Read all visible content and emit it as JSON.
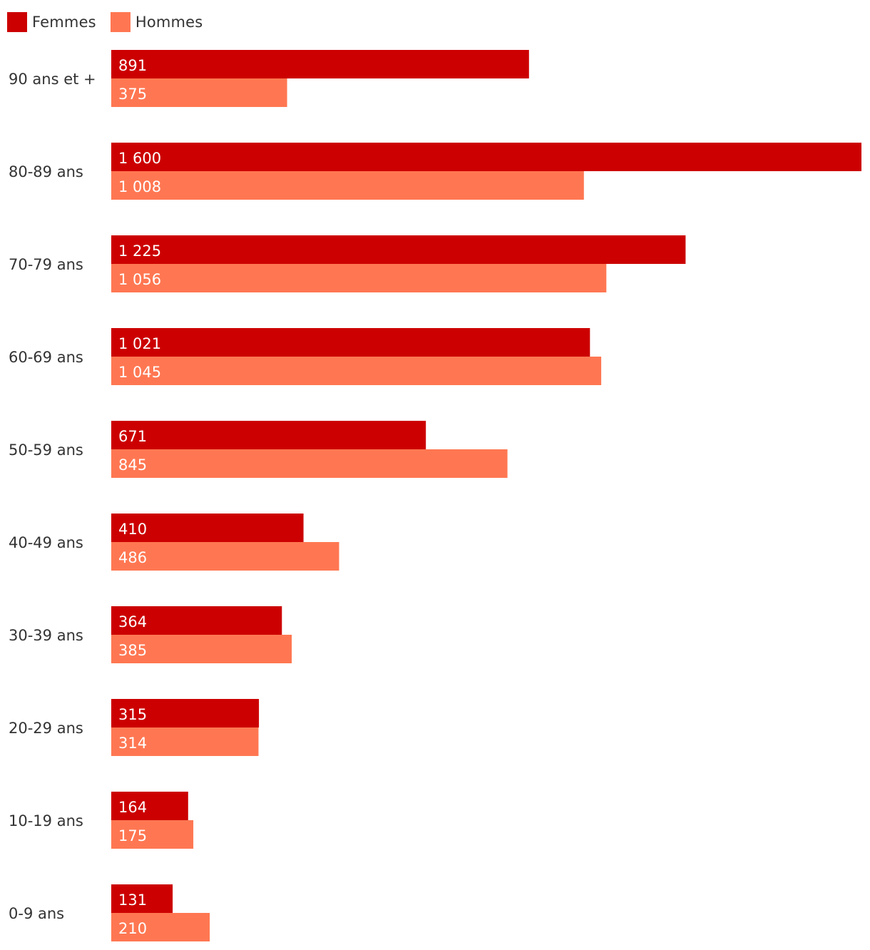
{
  "chart_data": {
    "type": "bar",
    "orientation": "horizontal",
    "categories": [
      "90 ans et +",
      "80-89 ans",
      "70-79 ans",
      "60-69 ans",
      "50-59 ans",
      "40-49 ans",
      "30-39 ans",
      "20-29 ans",
      "10-19 ans",
      "0-9 ans"
    ],
    "series": [
      {
        "name": "Femmes",
        "color": "#cc0000",
        "values": [
          891,
          1600,
          1225,
          1021,
          671,
          410,
          364,
          315,
          164,
          131
        ],
        "labels": [
          "891",
          "1 600",
          "1 225",
          "1 021",
          "671",
          "410",
          "364",
          "315",
          "164",
          "131"
        ]
      },
      {
        "name": "Hommes",
        "color": "#ff7752",
        "values": [
          375,
          1008,
          1056,
          1045,
          845,
          486,
          385,
          314,
          175,
          210
        ],
        "labels": [
          "375",
          "1 008",
          "1 056",
          "1 045",
          "845",
          "486",
          "385",
          "314",
          "175",
          "210"
        ]
      }
    ],
    "xlim": [
      0,
      1600
    ],
    "grid": false,
    "legend": "top-left",
    "title": "",
    "xlabel": "",
    "ylabel": ""
  }
}
